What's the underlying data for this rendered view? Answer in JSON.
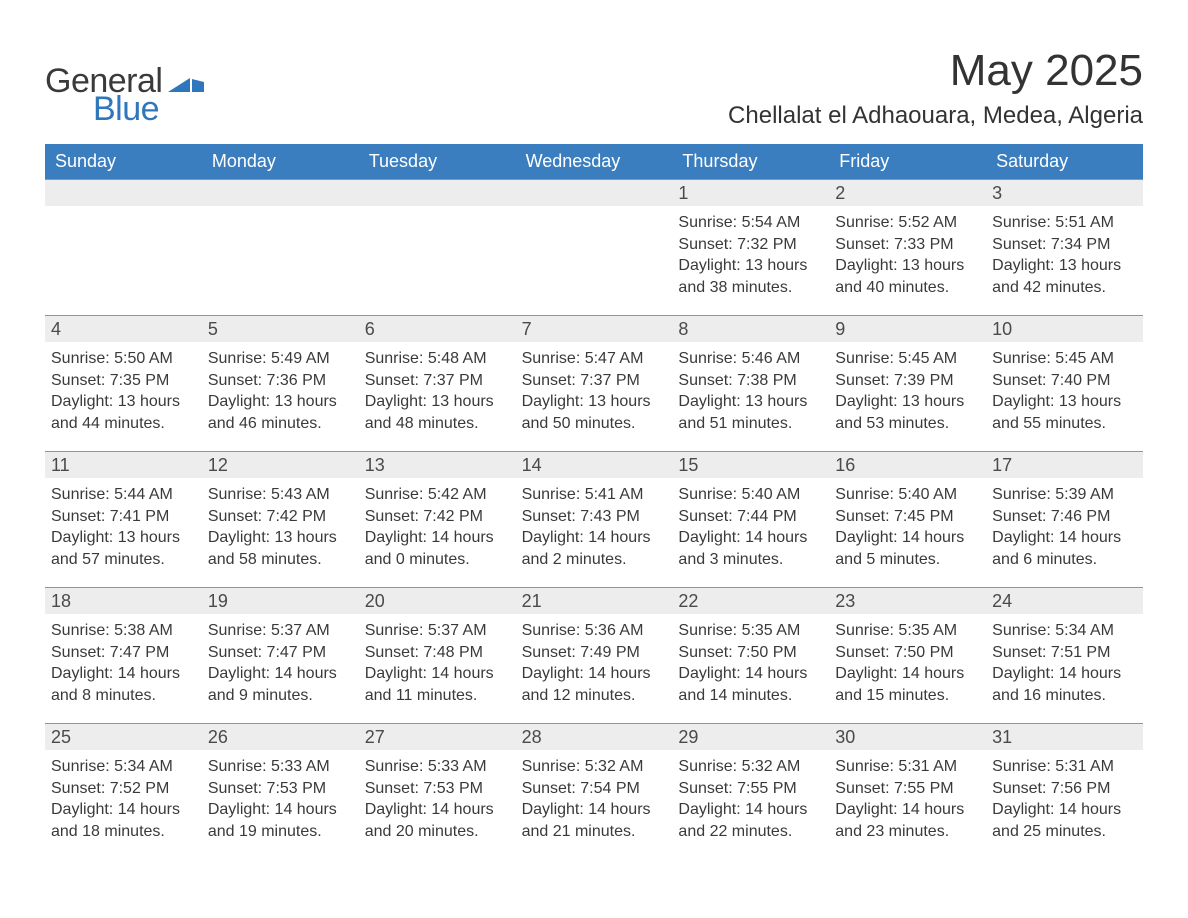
{
  "logo": {
    "general": "General",
    "blue": "Blue",
    "shape_color": "#2f77bd"
  },
  "header": {
    "title": "May 2025",
    "location": "Chellalat el Adhaouara, Medea, Algeria"
  },
  "colors": {
    "header_bg": "#3a7ebf",
    "header_text": "#ffffff",
    "date_strip_bg": "#ededed",
    "text": "#3a3a3a",
    "week_border": "#6f9fc9",
    "page_bg": "#ffffff"
  },
  "days_of_week": [
    "Sunday",
    "Monday",
    "Tuesday",
    "Wednesday",
    "Thursday",
    "Friday",
    "Saturday"
  ],
  "cell_font_size_pt": 12,
  "weeks": [
    [
      {
        "date": "",
        "sunrise": "",
        "sunset": "",
        "daylight_l1": "",
        "daylight_l2": ""
      },
      {
        "date": "",
        "sunrise": "",
        "sunset": "",
        "daylight_l1": "",
        "daylight_l2": ""
      },
      {
        "date": "",
        "sunrise": "",
        "sunset": "",
        "daylight_l1": "",
        "daylight_l2": ""
      },
      {
        "date": "",
        "sunrise": "",
        "sunset": "",
        "daylight_l1": "",
        "daylight_l2": ""
      },
      {
        "date": "1",
        "sunrise": "Sunrise: 5:54 AM",
        "sunset": "Sunset: 7:32 PM",
        "daylight_l1": "Daylight: 13 hours",
        "daylight_l2": "and 38 minutes."
      },
      {
        "date": "2",
        "sunrise": "Sunrise: 5:52 AM",
        "sunset": "Sunset: 7:33 PM",
        "daylight_l1": "Daylight: 13 hours",
        "daylight_l2": "and 40 minutes."
      },
      {
        "date": "3",
        "sunrise": "Sunrise: 5:51 AM",
        "sunset": "Sunset: 7:34 PM",
        "daylight_l1": "Daylight: 13 hours",
        "daylight_l2": "and 42 minutes."
      }
    ],
    [
      {
        "date": "4",
        "sunrise": "Sunrise: 5:50 AM",
        "sunset": "Sunset: 7:35 PM",
        "daylight_l1": "Daylight: 13 hours",
        "daylight_l2": "and 44 minutes."
      },
      {
        "date": "5",
        "sunrise": "Sunrise: 5:49 AM",
        "sunset": "Sunset: 7:36 PM",
        "daylight_l1": "Daylight: 13 hours",
        "daylight_l2": "and 46 minutes."
      },
      {
        "date": "6",
        "sunrise": "Sunrise: 5:48 AM",
        "sunset": "Sunset: 7:37 PM",
        "daylight_l1": "Daylight: 13 hours",
        "daylight_l2": "and 48 minutes."
      },
      {
        "date": "7",
        "sunrise": "Sunrise: 5:47 AM",
        "sunset": "Sunset: 7:37 PM",
        "daylight_l1": "Daylight: 13 hours",
        "daylight_l2": "and 50 minutes."
      },
      {
        "date": "8",
        "sunrise": "Sunrise: 5:46 AM",
        "sunset": "Sunset: 7:38 PM",
        "daylight_l1": "Daylight: 13 hours",
        "daylight_l2": "and 51 minutes."
      },
      {
        "date": "9",
        "sunrise": "Sunrise: 5:45 AM",
        "sunset": "Sunset: 7:39 PM",
        "daylight_l1": "Daylight: 13 hours",
        "daylight_l2": "and 53 minutes."
      },
      {
        "date": "10",
        "sunrise": "Sunrise: 5:45 AM",
        "sunset": "Sunset: 7:40 PM",
        "daylight_l1": "Daylight: 13 hours",
        "daylight_l2": "and 55 minutes."
      }
    ],
    [
      {
        "date": "11",
        "sunrise": "Sunrise: 5:44 AM",
        "sunset": "Sunset: 7:41 PM",
        "daylight_l1": "Daylight: 13 hours",
        "daylight_l2": "and 57 minutes."
      },
      {
        "date": "12",
        "sunrise": "Sunrise: 5:43 AM",
        "sunset": "Sunset: 7:42 PM",
        "daylight_l1": "Daylight: 13 hours",
        "daylight_l2": "and 58 minutes."
      },
      {
        "date": "13",
        "sunrise": "Sunrise: 5:42 AM",
        "sunset": "Sunset: 7:42 PM",
        "daylight_l1": "Daylight: 14 hours",
        "daylight_l2": "and 0 minutes."
      },
      {
        "date": "14",
        "sunrise": "Sunrise: 5:41 AM",
        "sunset": "Sunset: 7:43 PM",
        "daylight_l1": "Daylight: 14 hours",
        "daylight_l2": "and 2 minutes."
      },
      {
        "date": "15",
        "sunrise": "Sunrise: 5:40 AM",
        "sunset": "Sunset: 7:44 PM",
        "daylight_l1": "Daylight: 14 hours",
        "daylight_l2": "and 3 minutes."
      },
      {
        "date": "16",
        "sunrise": "Sunrise: 5:40 AM",
        "sunset": "Sunset: 7:45 PM",
        "daylight_l1": "Daylight: 14 hours",
        "daylight_l2": "and 5 minutes."
      },
      {
        "date": "17",
        "sunrise": "Sunrise: 5:39 AM",
        "sunset": "Sunset: 7:46 PM",
        "daylight_l1": "Daylight: 14 hours",
        "daylight_l2": "and 6 minutes."
      }
    ],
    [
      {
        "date": "18",
        "sunrise": "Sunrise: 5:38 AM",
        "sunset": "Sunset: 7:47 PM",
        "daylight_l1": "Daylight: 14 hours",
        "daylight_l2": "and 8 minutes."
      },
      {
        "date": "19",
        "sunrise": "Sunrise: 5:37 AM",
        "sunset": "Sunset: 7:47 PM",
        "daylight_l1": "Daylight: 14 hours",
        "daylight_l2": "and 9 minutes."
      },
      {
        "date": "20",
        "sunrise": "Sunrise: 5:37 AM",
        "sunset": "Sunset: 7:48 PM",
        "daylight_l1": "Daylight: 14 hours",
        "daylight_l2": "and 11 minutes."
      },
      {
        "date": "21",
        "sunrise": "Sunrise: 5:36 AM",
        "sunset": "Sunset: 7:49 PM",
        "daylight_l1": "Daylight: 14 hours",
        "daylight_l2": "and 12 minutes."
      },
      {
        "date": "22",
        "sunrise": "Sunrise: 5:35 AM",
        "sunset": "Sunset: 7:50 PM",
        "daylight_l1": "Daylight: 14 hours",
        "daylight_l2": "and 14 minutes."
      },
      {
        "date": "23",
        "sunrise": "Sunrise: 5:35 AM",
        "sunset": "Sunset: 7:50 PM",
        "daylight_l1": "Daylight: 14 hours",
        "daylight_l2": "and 15 minutes."
      },
      {
        "date": "24",
        "sunrise": "Sunrise: 5:34 AM",
        "sunset": "Sunset: 7:51 PM",
        "daylight_l1": "Daylight: 14 hours",
        "daylight_l2": "and 16 minutes."
      }
    ],
    [
      {
        "date": "25",
        "sunrise": "Sunrise: 5:34 AM",
        "sunset": "Sunset: 7:52 PM",
        "daylight_l1": "Daylight: 14 hours",
        "daylight_l2": "and 18 minutes."
      },
      {
        "date": "26",
        "sunrise": "Sunrise: 5:33 AM",
        "sunset": "Sunset: 7:53 PM",
        "daylight_l1": "Daylight: 14 hours",
        "daylight_l2": "and 19 minutes."
      },
      {
        "date": "27",
        "sunrise": "Sunrise: 5:33 AM",
        "sunset": "Sunset: 7:53 PM",
        "daylight_l1": "Daylight: 14 hours",
        "daylight_l2": "and 20 minutes."
      },
      {
        "date": "28",
        "sunrise": "Sunrise: 5:32 AM",
        "sunset": "Sunset: 7:54 PM",
        "daylight_l1": "Daylight: 14 hours",
        "daylight_l2": "and 21 minutes."
      },
      {
        "date": "29",
        "sunrise": "Sunrise: 5:32 AM",
        "sunset": "Sunset: 7:55 PM",
        "daylight_l1": "Daylight: 14 hours",
        "daylight_l2": "and 22 minutes."
      },
      {
        "date": "30",
        "sunrise": "Sunrise: 5:31 AM",
        "sunset": "Sunset: 7:55 PM",
        "daylight_l1": "Daylight: 14 hours",
        "daylight_l2": "and 23 minutes."
      },
      {
        "date": "31",
        "sunrise": "Sunrise: 5:31 AM",
        "sunset": "Sunset: 7:56 PM",
        "daylight_l1": "Daylight: 14 hours",
        "daylight_l2": "and 25 minutes."
      }
    ]
  ]
}
